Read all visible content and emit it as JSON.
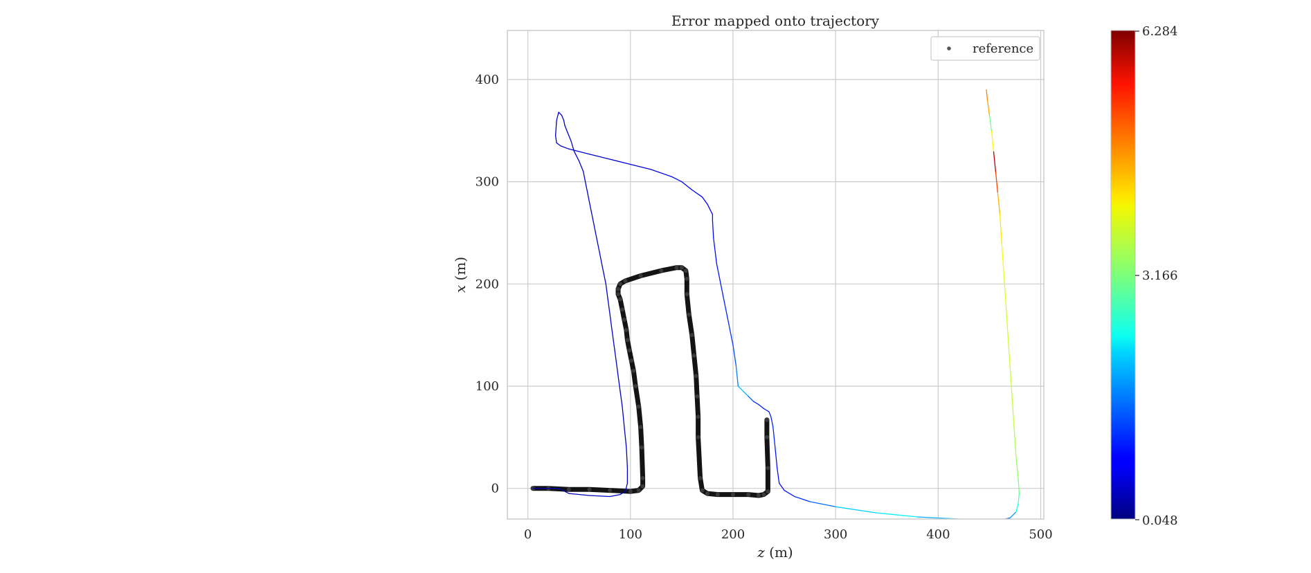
{
  "chart_data": {
    "type": "line",
    "title": "Error mapped onto trajectory",
    "xlabel": {
      "var": "z",
      "unit": "(m)"
    },
    "ylabel": {
      "var": "x",
      "unit": "(m)"
    },
    "xlim": [
      -20,
      503
    ],
    "ylim": [
      -30,
      448
    ],
    "xticks": [
      0,
      100,
      200,
      300,
      400,
      500
    ],
    "yticks": [
      0,
      100,
      200,
      300,
      400
    ],
    "grid": true,
    "legend": {
      "position": "top-right",
      "entries": [
        "reference"
      ]
    },
    "colorbar": {
      "min": 0.048,
      "mid": 3.166,
      "max": 6.284,
      "colormap": "jet",
      "tick_labels": [
        "6.284",
        "3.166",
        "0.048"
      ]
    },
    "series": [
      {
        "name": "reference",
        "style": "thick-markers",
        "color": "#000000",
        "x": [
          5,
          20,
          40,
          60,
          80,
          100,
          108,
          112,
          112,
          111,
          110,
          108,
          105,
          103,
          101,
          99,
          97,
          96,
          94,
          92,
          90,
          88,
          88,
          90,
          95,
          110,
          130,
          145,
          150,
          154,
          155,
          155,
          157,
          160,
          162,
          164,
          165,
          166,
          166,
          168,
          170,
          175,
          185,
          200,
          215,
          225,
          230,
          234,
          234,
          233,
          233
        ],
        "y": [
          0,
          0,
          -1,
          -1,
          -2,
          -3,
          -2,
          2,
          10,
          40,
          60,
          80,
          100,
          115,
          125,
          135,
          145,
          155,
          165,
          175,
          185,
          190,
          195,
          200,
          203,
          208,
          213,
          216,
          216,
          213,
          205,
          190,
          170,
          150,
          130,
          110,
          90,
          70,
          50,
          10,
          -2,
          -5,
          -6,
          -6,
          -6,
          -7,
          -6,
          -3,
          20,
          50,
          67
        ]
      },
      {
        "name": "",
        "style": "colormapped-line",
        "x": [
          5,
          30,
          40,
          60,
          80,
          90,
          95,
          97,
          97,
          96,
          94,
          92,
          90,
          88,
          86,
          84,
          82,
          80,
          78,
          76,
          74,
          72,
          70,
          68,
          66,
          64,
          62,
          60,
          58,
          56,
          54,
          50,
          45,
          42,
          40,
          38,
          36,
          35,
          33,
          30,
          28,
          27,
          28,
          32,
          40,
          60,
          80,
          100,
          120,
          140,
          150,
          160,
          170,
          175,
          178,
          180,
          180,
          181,
          184,
          188,
          192,
          196,
          200,
          203,
          205,
          210,
          215,
          220,
          225,
          230,
          235,
          237,
          239,
          241,
          243,
          245,
          250,
          260,
          275,
          300,
          340,
          380,
          420,
          440,
          460,
          470,
          476,
          478,
          479,
          478,
          476,
          474,
          472,
          470,
          468,
          466,
          464,
          462,
          460,
          458,
          456,
          454,
          452,
          450,
          448,
          447
        ],
        "y": [
          0,
          0,
          -5,
          -7,
          -8,
          -6,
          -3,
          5,
          20,
          40,
          60,
          80,
          95,
          110,
          125,
          140,
          155,
          170,
          185,
          200,
          210,
          220,
          230,
          240,
          250,
          260,
          270,
          280,
          290,
          300,
          310,
          320,
          330,
          340,
          345,
          350,
          355,
          360,
          365,
          368,
          360,
          345,
          338,
          335,
          332,
          327,
          322,
          317,
          312,
          305,
          300,
          292,
          285,
          278,
          272,
          268,
          262,
          245,
          220,
          200,
          180,
          160,
          140,
          120,
          100,
          95,
          90,
          85,
          82,
          78,
          75,
          70,
          60,
          40,
          20,
          5,
          -2,
          -8,
          -13,
          -18,
          -24,
          -28,
          -30,
          -31,
          -31,
          -29,
          -23,
          -15,
          -5,
          10,
          30,
          60,
          90,
          120,
          150,
          180,
          210,
          240,
          270,
          290,
          310,
          330,
          350,
          365,
          380,
          390
        ],
        "error": [
          0.3,
          0.3,
          0.4,
          0.4,
          0.5,
          0.5,
          0.5,
          0.5,
          0.5,
          0.5,
          0.5,
          0.5,
          0.5,
          0.5,
          0.5,
          0.5,
          0.5,
          0.5,
          0.5,
          0.5,
          0.5,
          0.5,
          0.5,
          0.5,
          0.5,
          0.5,
          0.5,
          0.5,
          0.5,
          0.5,
          0.5,
          0.5,
          0.5,
          0.5,
          0.5,
          0.5,
          0.5,
          0.5,
          0.5,
          0.5,
          0.5,
          0.5,
          0.5,
          0.5,
          0.6,
          0.6,
          0.6,
          0.7,
          0.7,
          0.8,
          0.8,
          0.8,
          0.8,
          0.8,
          0.9,
          0.9,
          0.9,
          0.9,
          0.9,
          1.0,
          1.0,
          1.1,
          1.2,
          1.4,
          1.8,
          2.2,
          1.6,
          1.2,
          1.0,
          1.0,
          1.0,
          1.0,
          1.1,
          1.0,
          0.9,
          0.9,
          0.9,
          1.0,
          1.2,
          1.8,
          2.4,
          2.2,
          1.6,
          1.4,
          1.2,
          1.4,
          2.2,
          2.8,
          3.0,
          3.2,
          3.4,
          3.5,
          3.6,
          3.6,
          3.7,
          3.6,
          3.8,
          4.0,
          4.2,
          4.6,
          5.6,
          6.2,
          1.8,
          4.4,
          4.6,
          4.8
        ]
      }
    ]
  }
}
